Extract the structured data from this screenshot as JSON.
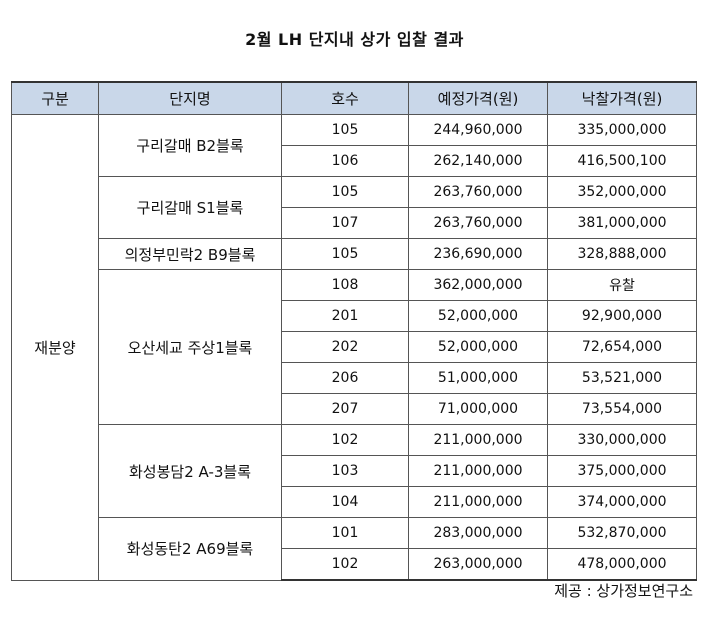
{
  "title": "2월 LH 단지내 상가 입찰 결과",
  "headers": [
    "구분",
    "단지명",
    "호수",
    "예정가격(원)",
    "낙찰가격(원)"
  ],
  "group": "재분양",
  "complexes": [
    {
      "name": "구리갈매 B2블록",
      "units": [
        {
          "unit": "105",
          "planned": "244,960,000",
          "winning": "335,000,000"
        },
        {
          "unit": "106",
          "planned": "262,140,000",
          "winning": "416,500,100"
        }
      ]
    },
    {
      "name": "구리갈매 S1블록",
      "units": [
        {
          "unit": "105",
          "planned": "263,760,000",
          "winning": "352,000,000"
        },
        {
          "unit": "107",
          "planned": "263,760,000",
          "winning": "381,000,000"
        }
      ]
    },
    {
      "name": "의정부민락2 B9블록",
      "units": [
        {
          "unit": "105",
          "planned": "236,690,000",
          "winning": "328,888,000"
        }
      ]
    },
    {
      "name": "오산세교 주상1블록",
      "units": [
        {
          "unit": "108",
          "planned": "362,000,000",
          "winning": "유찰"
        },
        {
          "unit": "201",
          "planned": "52,000,000",
          "winning": "92,900,000"
        },
        {
          "unit": "202",
          "planned": "52,000,000",
          "winning": "72,654,000"
        },
        {
          "unit": "206",
          "planned": "51,000,000",
          "winning": "53,521,000"
        },
        {
          "unit": "207",
          "planned": "71,000,000",
          "winning": "73,554,000"
        }
      ]
    },
    {
      "name": "화성봉담2 A-3블록",
      "units": [
        {
          "unit": "102",
          "planned": "211,000,000",
          "winning": "330,000,000"
        },
        {
          "unit": "103",
          "planned": "211,000,000",
          "winning": "375,000,000"
        },
        {
          "unit": "104",
          "planned": "211,000,000",
          "winning": "374,000,000"
        }
      ]
    },
    {
      "name": "화성동탄2 A69블록",
      "units": [
        {
          "unit": "101",
          "planned": "283,000,000",
          "winning": "532,870,000"
        },
        {
          "unit": "102",
          "planned": "263,000,000",
          "winning": "478,000,000"
        }
      ]
    }
  ],
  "source": "제공 : 상가정보연구소",
  "colors": {
    "header_bg": "#c9d7e9",
    "border": "#555555"
  }
}
